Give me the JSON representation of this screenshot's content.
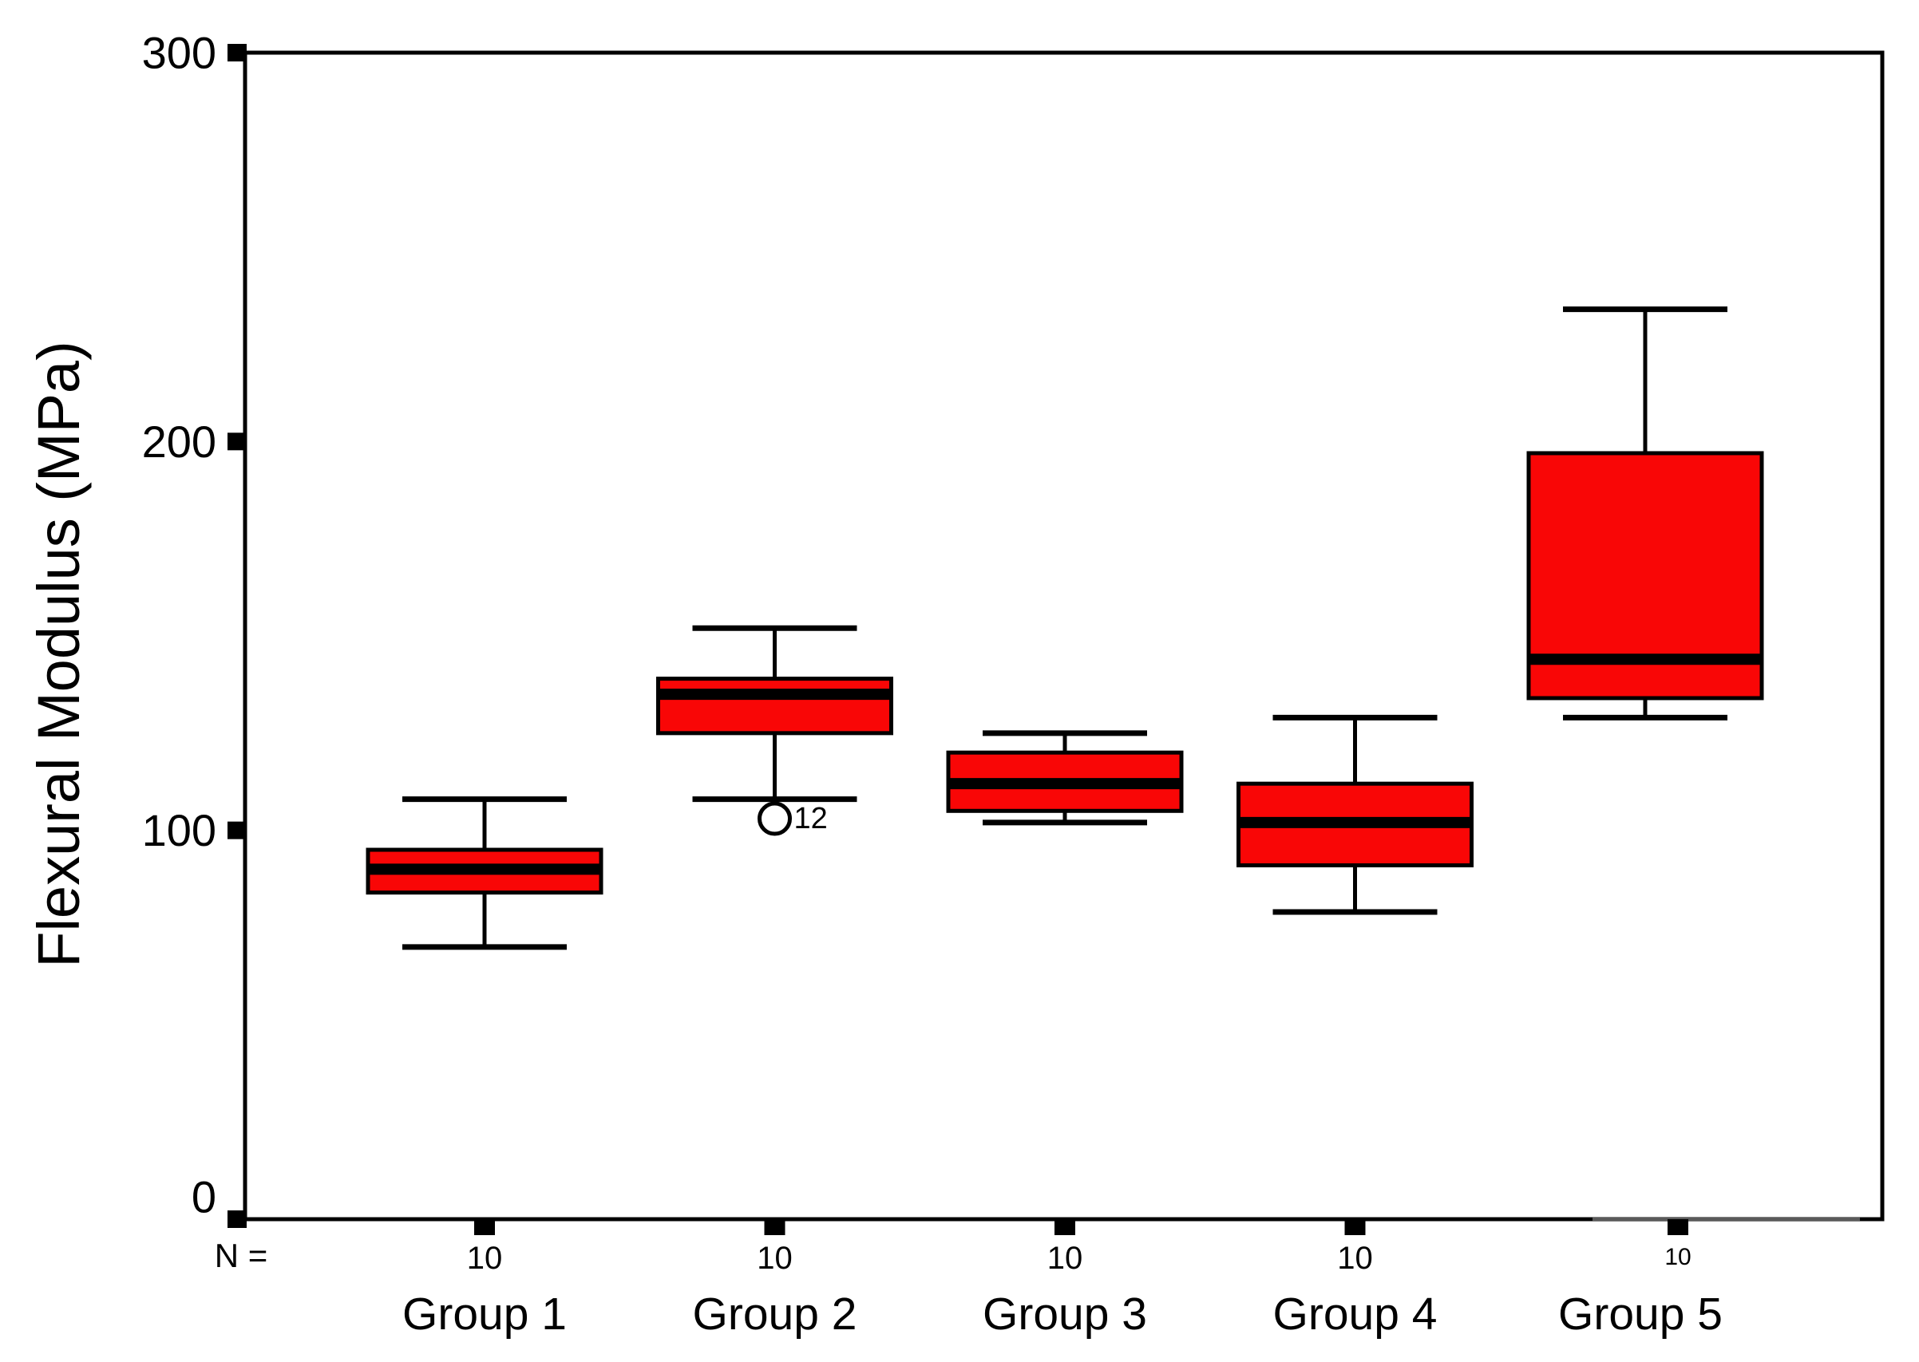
{
  "chart_data": {
    "type": "boxplot",
    "title": "",
    "ylabel": "Flexural Modulus (MPa)",
    "xlabel": "",
    "ylim": [
      0,
      300
    ],
    "yticks": [
      "0",
      "100",
      "200",
      "300"
    ],
    "grid": false,
    "legend_position": "none",
    "sample_size_prefix": "N =",
    "background_color": "#ffffff",
    "box_fill_color": "#f90606",
    "box_line_color": "#000000",
    "axis_color": "#000000",
    "groups": [
      {
        "label": "Group 1",
        "n": "10",
        "whisker_low": 70,
        "q1": 84,
        "median": 90,
        "q3": 95,
        "whisker_high": 108,
        "outliers": []
      },
      {
        "label": "Group 2",
        "n": "10",
        "whisker_low": 108,
        "q1": 125,
        "median": 135,
        "q3": 139,
        "whisker_high": 152,
        "outliers": [
          {
            "value": 103,
            "label": "12"
          }
        ]
      },
      {
        "label": "Group 3",
        "n": "10",
        "whisker_low": 102,
        "q1": 105,
        "median": 112,
        "q3": 120,
        "whisker_high": 125,
        "outliers": []
      },
      {
        "label": "Group 4",
        "n": "10",
        "whisker_low": 79,
        "q1": 91,
        "median": 102,
        "q3": 112,
        "whisker_high": 129,
        "outliers": []
      },
      {
        "label": "Group 5",
        "n": "10",
        "whisker_low": 129,
        "q1": 134,
        "median": 144,
        "q3": 197,
        "whisker_high": 234,
        "outliers": []
      }
    ]
  }
}
